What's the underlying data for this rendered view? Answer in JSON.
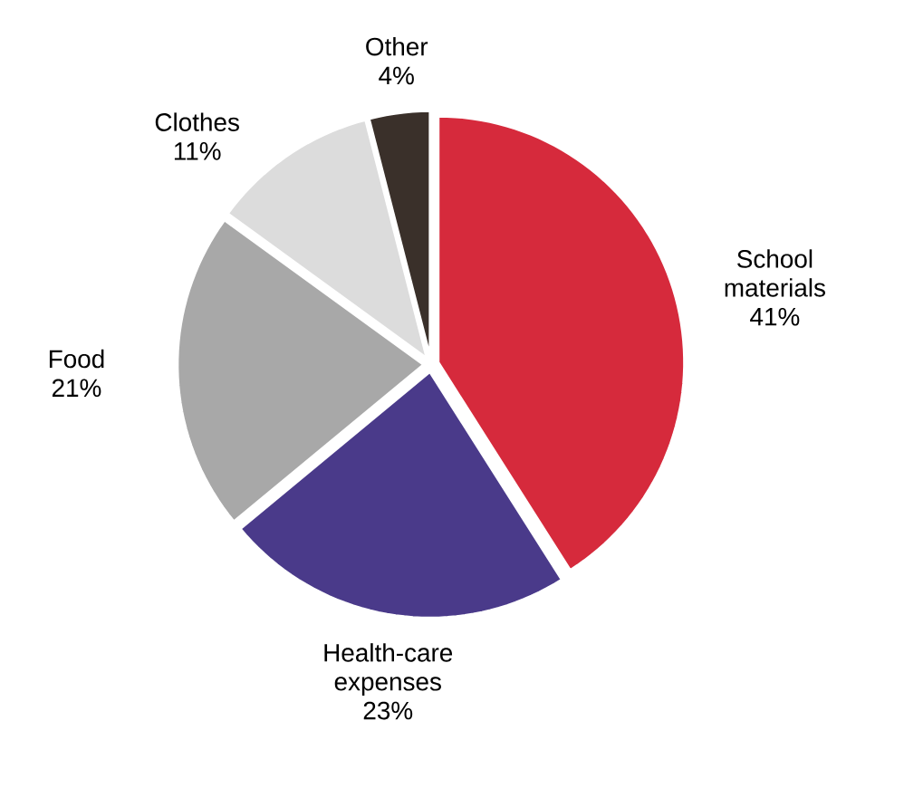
{
  "chart_data": {
    "type": "pie",
    "categories": [
      "School materials",
      "Health-care expenses",
      "Food",
      "Clothes",
      "Other"
    ],
    "values": [
      41,
      23,
      21,
      11,
      4
    ],
    "value_labels": [
      "41%",
      "23%",
      "21%",
      "11%",
      "4%"
    ],
    "colors": [
      "#d62a3c",
      "#4a3a8a",
      "#a8a8a8",
      "#dcdcdc",
      "#3a302a"
    ]
  }
}
